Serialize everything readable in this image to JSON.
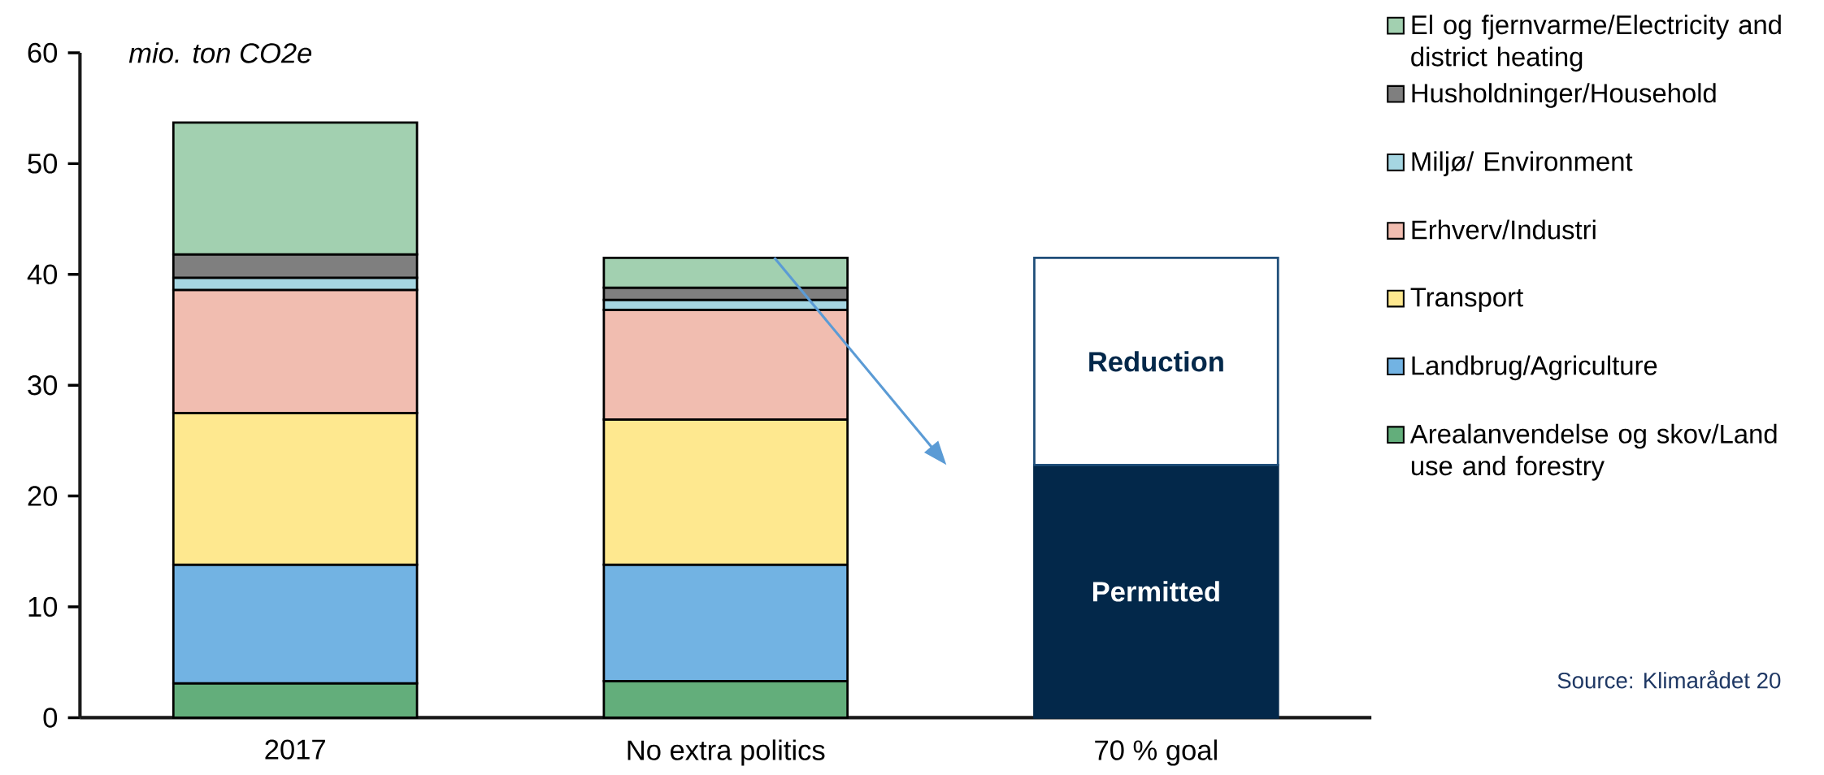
{
  "chart_data": {
    "type": "bar",
    "stacked": true,
    "ylabel": "mio. ton CO2e",
    "categories": [
      "2017",
      "No extra politics",
      "70 % goal"
    ],
    "series": [
      {
        "name": "Arealanvendelse og skov/Land use and forestry",
        "color": "#63ae7b",
        "values": [
          3.1,
          3.3,
          null
        ]
      },
      {
        "name": "Landbrug/Agriculture",
        "color": "#72b3e3",
        "values": [
          10.7,
          10.5,
          null
        ]
      },
      {
        "name": "Transport",
        "color": "#fee88f",
        "values": [
          13.7,
          13.1,
          null
        ]
      },
      {
        "name": "Erhverv/Industri",
        "color": "#f1bdb0",
        "values": [
          11.1,
          9.9,
          null
        ]
      },
      {
        "name": "Miljø/ Environment",
        "color": "#a6d6e2",
        "values": [
          1.1,
          0.9,
          null
        ]
      },
      {
        "name": "Husholdninger/Household",
        "color": "#7f7f7f",
        "values": [
          2.1,
          1.1,
          null
        ]
      },
      {
        "name": "El og fjernvarme/Electricity and district heating",
        "color": "#a2d0b0",
        "values": [
          11.9,
          2.7,
          null
        ]
      },
      {
        "name": "Permitted",
        "color": "#03284a",
        "values": [
          null,
          null,
          22.8
        ]
      },
      {
        "name": "Reduction",
        "color": "#ffffff",
        "values": [
          null,
          null,
          18.7
        ]
      }
    ],
    "ylim": [
      0,
      60
    ],
    "yticks": [
      0,
      10,
      20,
      30,
      40,
      50,
      60
    ],
    "legend": "right",
    "annotations": [
      "Source: Klimarådet 20"
    ]
  }
}
